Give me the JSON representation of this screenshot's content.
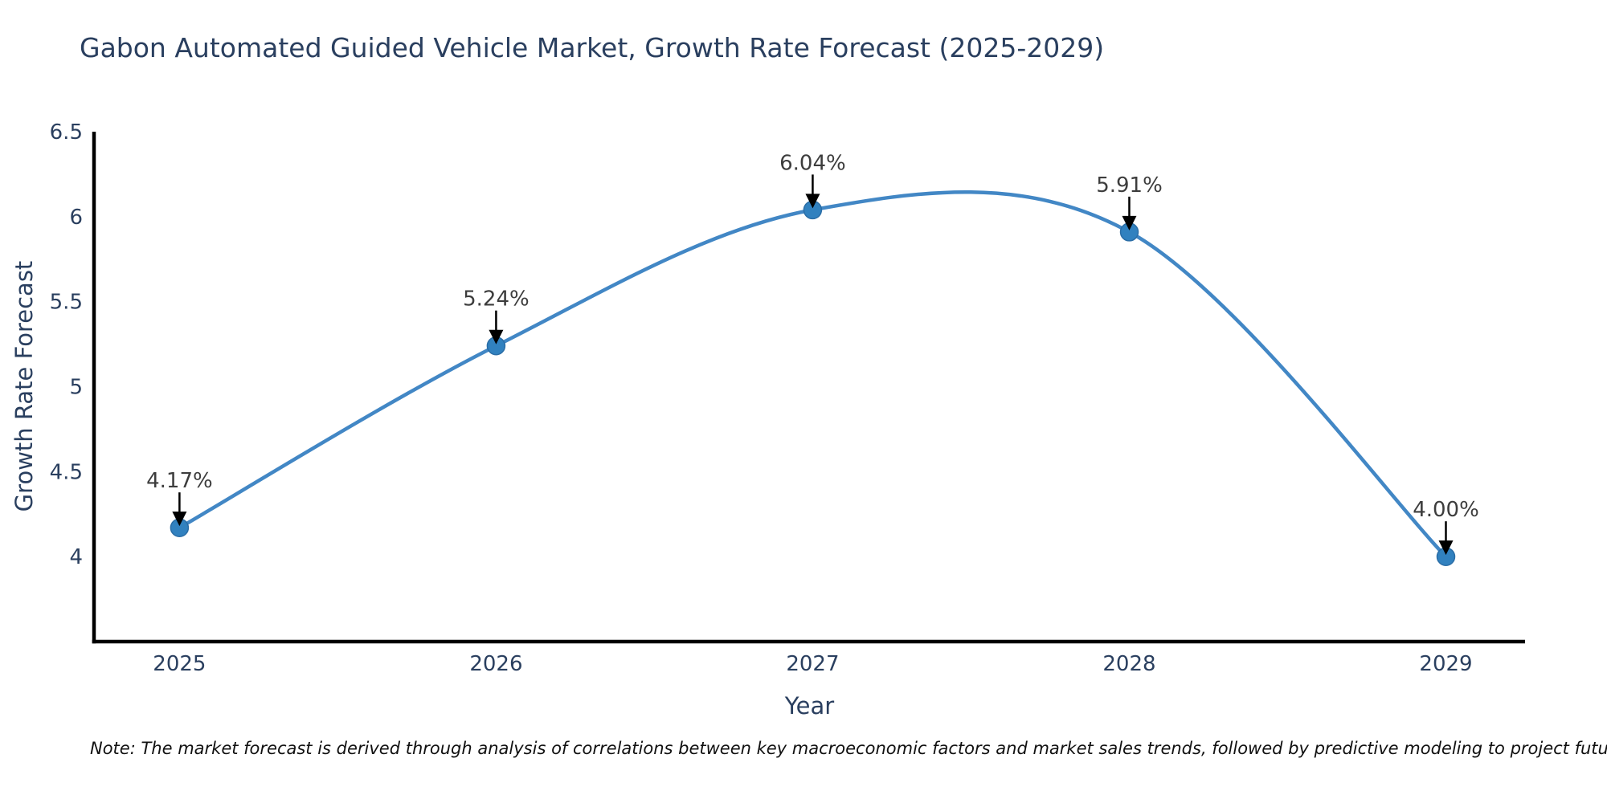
{
  "note": "Note: The market forecast is derived through analysis of correlations between key macroeconomic factors and market sales trends, followed by predictive modeling to project future sales",
  "chart_data": {
    "type": "line",
    "title": "Gabon Automated Guided Vehicle Market, Growth Rate Forecast (2025-2029)",
    "x": [
      2025,
      2026,
      2027,
      2028,
      2029
    ],
    "series": [
      {
        "name": "Growth Rate Forecast",
        "values": [
          4.17,
          5.24,
          6.04,
          5.91,
          4.0
        ]
      }
    ],
    "point_labels": [
      "4.17%",
      "5.24%",
      "6.04%",
      "5.91%",
      "4.00%"
    ],
    "xlabel": "Year",
    "ylabel": "Growth Rate Forecast",
    "x_tick_labels": [
      "2025",
      "2026",
      "2027",
      "2028",
      "2029"
    ],
    "y_ticks": [
      4,
      4.5,
      5,
      5.5,
      6,
      6.5
    ],
    "xlim": [
      2024.73,
      2029.25
    ],
    "ylim": [
      3.5,
      6.5
    ],
    "line_shape": "spline",
    "grid": false,
    "legend_position": "none",
    "annotation_style": "down-arrow",
    "colors": {
      "line": "#4287c5",
      "marker": "#3181bf",
      "marker_edge": "#2a6da6",
      "axis": "#000000",
      "arrow": "#000000",
      "text": "#2a3f5f",
      "annotation_text": "#3d3d3d",
      "background": "#ffffff"
    }
  }
}
